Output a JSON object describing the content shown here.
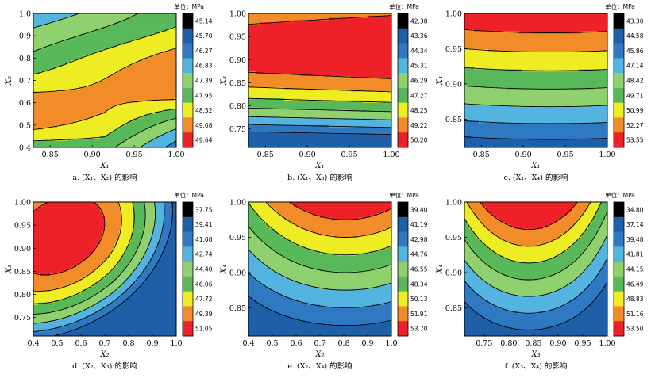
{
  "chart_data": [
    {
      "type": "contour",
      "id": "a",
      "caption": "a. (X₁、X₂) 的影响",
      "xlabel": "X₁",
      "ylabel": "X₂",
      "xlim": [
        0.83,
        1.0
      ],
      "ylim": [
        0.4,
        1.0
      ],
      "xticks": [
        "0.85",
        "0.90",
        "0.95",
        "1.00"
      ],
      "yticks": [
        "0.4",
        "0.5",
        "0.6",
        "0.7",
        "0.8",
        "0.9",
        "1.0"
      ],
      "unit_label": "单位：MPa",
      "colorbar_levels": [
        "45.14",
        "45.70",
        "46.27",
        "46.83",
        "47.39",
        "47.95",
        "48.52",
        "49.08",
        "49.64"
      ],
      "response": "saddle: high at low X1 mid X2 and high X1 mid X2, low at top-left and bottom-right"
    },
    {
      "type": "contour",
      "id": "b",
      "caption": "b. (X₁、X₃) 的影响",
      "xlabel": "X₁",
      "ylabel": "X₃",
      "xlim": [
        0.83,
        1.0
      ],
      "ylim": [
        0.71,
        1.0
      ],
      "xticks": [
        "0.85",
        "0.90",
        "0.95",
        "1.00"
      ],
      "yticks": [
        "0.75",
        "0.80",
        "0.85",
        "0.90",
        "0.95",
        "1.00"
      ],
      "unit_label": "单位：MPa",
      "colorbar_levels": [
        "42.38",
        "43.36",
        "44.34",
        "45.31",
        "46.29",
        "47.27",
        "48.25",
        "49.22",
        "50.20"
      ],
      "response": "maximum band near X3 = 0.89, decreasing toward X3 = 0.71"
    },
    {
      "type": "contour",
      "id": "c",
      "caption": "c. (X₁、X₄) 的影响",
      "xlabel": "X₁",
      "ylabel": "X₄",
      "xlim": [
        0.83,
        1.0
      ],
      "ylim": [
        0.81,
        1.0
      ],
      "xticks": [
        "0.85",
        "0.90",
        "0.95",
        "1.00"
      ],
      "yticks": [
        "0.85",
        "0.90",
        "0.95",
        "1.00"
      ],
      "unit_label": "单位：MPa",
      "colorbar_levels": [
        "43.30",
        "44.58",
        "45.86",
        "47.14",
        "48.42",
        "49.71",
        "50.99",
        "52.27",
        "53.55"
      ],
      "response": "increases with X4, maximum at top"
    },
    {
      "type": "contour",
      "id": "d",
      "caption": "d. (X₂、X₃) 的影响",
      "xlabel": "X₂",
      "ylabel": "X₃",
      "xlim": [
        0.4,
        1.0
      ],
      "ylim": [
        0.71,
        1.0
      ],
      "xticks": [
        "0.4",
        "0.5",
        "0.6",
        "0.7",
        "0.8",
        "0.9",
        "1.0"
      ],
      "yticks": [
        "0.75",
        "0.80",
        "0.85",
        "0.90",
        "0.95",
        "1.00"
      ],
      "unit_label": "单位：MPa",
      "colorbar_levels": [
        "37.75",
        "39.41",
        "41.08",
        "42.74",
        "44.40",
        "46.06",
        "47.72",
        "49.39",
        "51.05"
      ],
      "response": "maximum near X2 = 0.5, X3 = 0.92; minima at top-right and bottom-left"
    },
    {
      "type": "contour",
      "id": "e",
      "caption": "e. (X₂、X₄) 的影响",
      "xlabel": "X₂",
      "ylabel": "X₄",
      "xlim": [
        0.4,
        1.0
      ],
      "ylim": [
        0.81,
        1.0
      ],
      "xticks": [
        "0.4",
        "0.5",
        "0.6",
        "0.7",
        "0.8",
        "0.9",
        "1.0"
      ],
      "yticks": [
        "0.85",
        "0.90",
        "0.95",
        "1.00"
      ],
      "unit_label": "单位：MPa",
      "colorbar_levels": [
        "39.40",
        "41.19",
        "42.98",
        "44.76",
        "46.55",
        "48.34",
        "50.13",
        "51.91",
        "53.70"
      ],
      "response": "increases with X4, maximum near X2 = 0.8 at top"
    },
    {
      "type": "contour",
      "id": "f",
      "caption": "f. (X₃、X₄) 的影响",
      "xlabel": "X₃",
      "ylabel": "X₄",
      "xlim": [
        0.71,
        1.0
      ],
      "ylim": [
        0.81,
        1.0
      ],
      "xticks": [
        "0.75",
        "0.80",
        "0.85",
        "0.90",
        "0.95",
        "1.00"
      ],
      "yticks": [
        "0.85",
        "0.90",
        "0.95",
        "1.00"
      ],
      "unit_label": "单位：MPa",
      "colorbar_levels": [
        "34.80",
        "37.14",
        "39.48",
        "41.81",
        "44.15",
        "46.49",
        "48.83",
        "51.16",
        "53.50"
      ],
      "response": "maximum near X3 = 0.84 at top, U-shaped contours"
    }
  ],
  "colors": [
    "#1e5fa8",
    "#2e79c2",
    "#54b4e0",
    "#8fd16f",
    "#59b859",
    "#eeec23",
    "#f28c28",
    "#ee2128"
  ]
}
